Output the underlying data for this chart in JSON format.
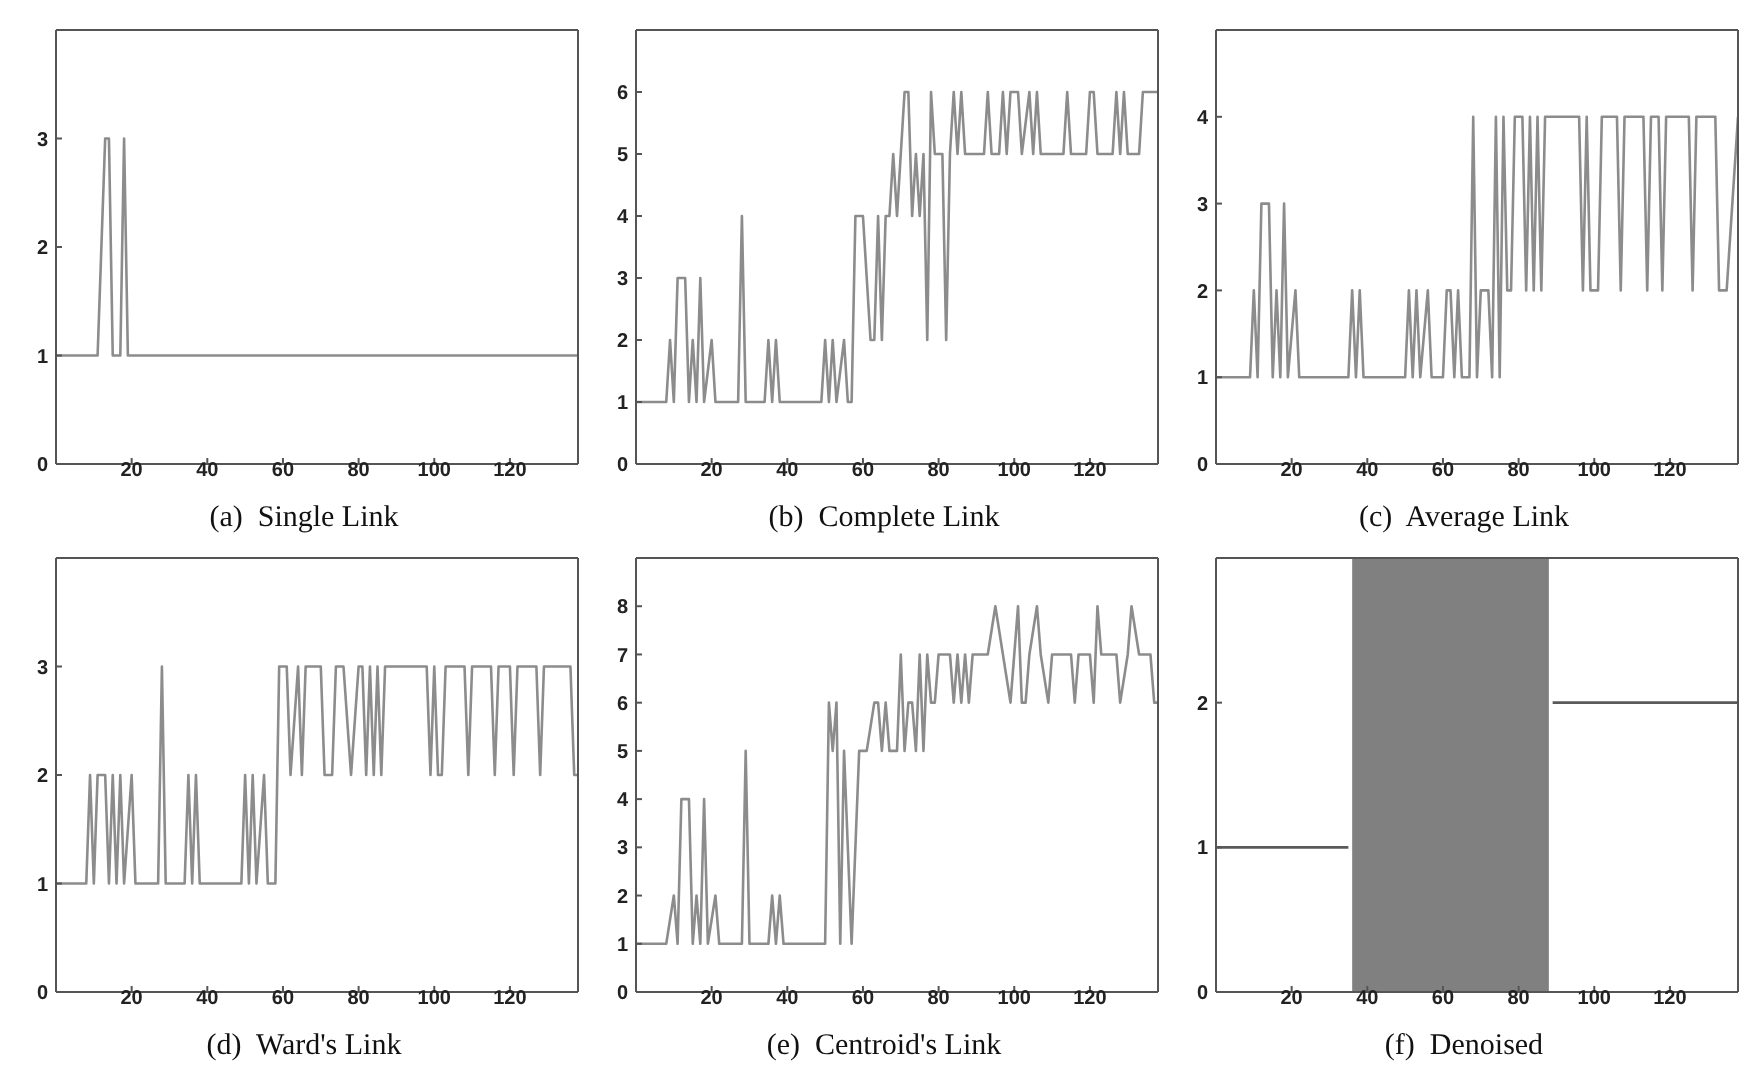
{
  "chart_data": [
    {
      "type": "line",
      "title": "(a)  Single Link",
      "xlim": [
        0,
        138
      ],
      "xticks": [
        20,
        40,
        60,
        80,
        100,
        120
      ],
      "ylim": [
        0,
        4
      ],
      "yticks": [
        0,
        1,
        2,
        3
      ],
      "grid": false,
      "series": [
        {
          "color": "#8c8c8c",
          "x": [
            0,
            11,
            13,
            14,
            15,
            17,
            18,
            19,
            138
          ],
          "values": [
            1,
            1,
            3,
            3,
            1,
            1,
            3,
            1,
            1
          ]
        }
      ]
    },
    {
      "type": "line",
      "title": "(b)  Complete Link",
      "xlim": [
        0,
        138
      ],
      "xticks": [
        20,
        40,
        60,
        80,
        100,
        120
      ],
      "ylim": [
        0,
        7
      ],
      "yticks": [
        0,
        1,
        2,
        3,
        4,
        5,
        6
      ],
      "grid": false,
      "series": [
        {
          "color": "#8c8c8c",
          "x": [
            0,
            8,
            9,
            10,
            11,
            13,
            14,
            15,
            16,
            17,
            18,
            20,
            21,
            27,
            28,
            29,
            34,
            35,
            36,
            37,
            38,
            49,
            50,
            51,
            52,
            53,
            55,
            56,
            57,
            58,
            60,
            62,
            63,
            64,
            65,
            66,
            67,
            68,
            69,
            71,
            72,
            73,
            74,
            75,
            76,
            77,
            78,
            79,
            81,
            82,
            83,
            84,
            85,
            86,
            87,
            92,
            93,
            94,
            96,
            97,
            98,
            99,
            101,
            102,
            104,
            105,
            106,
            107,
            113,
            114,
            115,
            119,
            120,
            121,
            122,
            126,
            127,
            128,
            129,
            130,
            133,
            134,
            138
          ],
          "values": [
            1,
            1,
            2,
            1,
            3,
            3,
            1,
            2,
            1,
            3,
            1,
            2,
            1,
            1,
            4,
            1,
            1,
            2,
            1,
            2,
            1,
            1,
            2,
            1,
            2,
            1,
            2,
            1,
            1,
            4,
            4,
            2,
            2,
            4,
            2,
            4,
            4,
            5,
            4,
            6,
            6,
            4,
            5,
            4,
            5,
            2,
            6,
            5,
            5,
            2,
            5,
            6,
            5,
            6,
            5,
            5,
            6,
            5,
            5,
            6,
            5,
            6,
            6,
            5,
            6,
            5,
            6,
            5,
            5,
            6,
            5,
            5,
            6,
            6,
            5,
            5,
            6,
            5,
            6,
            5,
            5,
            6,
            6
          ]
        }
      ]
    },
    {
      "type": "line",
      "title": "(c)  Average Link",
      "xlim": [
        0,
        138
      ],
      "xticks": [
        20,
        40,
        60,
        80,
        100,
        120
      ],
      "ylim": [
        0,
        5
      ],
      "yticks": [
        0,
        1,
        2,
        3,
        4
      ],
      "grid": false,
      "series": [
        {
          "color": "#8c8c8c",
          "x": [
            0,
            9,
            10,
            11,
            12,
            14,
            15,
            16,
            17,
            18,
            19,
            21,
            22,
            35,
            36,
            37,
            38,
            39,
            50,
            51,
            52,
            53,
            54,
            56,
            57,
            60,
            61,
            62,
            63,
            64,
            65,
            67,
            68,
            69,
            70,
            72,
            73,
            74,
            75,
            76,
            77,
            78,
            79,
            81,
            82,
            83,
            84,
            85,
            86,
            87,
            96,
            97,
            98,
            99,
            101,
            102,
            106,
            107,
            108,
            113,
            114,
            115,
            117,
            118,
            119,
            125,
            126,
            127,
            132,
            133,
            135,
            138
          ],
          "values": [
            1,
            1,
            2,
            1,
            3,
            3,
            1,
            2,
            1,
            3,
            1,
            2,
            1,
            1,
            2,
            1,
            2,
            1,
            1,
            2,
            1,
            2,
            1,
            2,
            1,
            1,
            2,
            2,
            1,
            2,
            1,
            1,
            4,
            1,
            2,
            2,
            1,
            4,
            1,
            4,
            2,
            2,
            4,
            4,
            2,
            4,
            2,
            4,
            2,
            4,
            4,
            2,
            4,
            2,
            2,
            4,
            4,
            2,
            4,
            4,
            2,
            4,
            4,
            2,
            4,
            4,
            2,
            4,
            4,
            2,
            2,
            4
          ]
        }
      ]
    },
    {
      "type": "line",
      "title": "(d)  Ward's Link",
      "xlim": [
        0,
        138
      ],
      "xticks": [
        20,
        40,
        60,
        80,
        100,
        120
      ],
      "ylim": [
        0,
        4
      ],
      "yticks": [
        0,
        1,
        2,
        3
      ],
      "grid": false,
      "series": [
        {
          "color": "#8c8c8c",
          "x": [
            0,
            8,
            9,
            10,
            11,
            13,
            14,
            15,
            16,
            17,
            18,
            20,
            21,
            27,
            28,
            29,
            34,
            35,
            36,
            37,
            38,
            49,
            50,
            51,
            52,
            53,
            55,
            56,
            58,
            59,
            61,
            62,
            64,
            65,
            66,
            70,
            71,
            73,
            74,
            76,
            78,
            80,
            81,
            82,
            83,
            84,
            85,
            86,
            87,
            98,
            99,
            100,
            101,
            102,
            103,
            108,
            109,
            110,
            115,
            116,
            117,
            120,
            121,
            122,
            127,
            128,
            129,
            136,
            137,
            138
          ],
          "values": [
            1,
            1,
            2,
            1,
            2,
            2,
            1,
            2,
            1,
            2,
            1,
            2,
            1,
            1,
            3,
            1,
            1,
            2,
            1,
            2,
            1,
            1,
            2,
            1,
            2,
            1,
            2,
            1,
            1,
            3,
            3,
            2,
            3,
            2,
            3,
            3,
            2,
            2,
            3,
            3,
            2,
            3,
            3,
            2,
            3,
            2,
            3,
            2,
            3,
            3,
            2,
            3,
            2,
            2,
            3,
            3,
            2,
            3,
            3,
            2,
            3,
            3,
            2,
            3,
            3,
            2,
            3,
            3,
            2,
            2
          ]
        }
      ]
    },
    {
      "type": "line",
      "title": "(e)  Centroid's Link",
      "xlim": [
        0,
        138
      ],
      "xticks": [
        20,
        40,
        60,
        80,
        100,
        120
      ],
      "ylim": [
        0,
        9
      ],
      "yticks": [
        0,
        1,
        2,
        3,
        4,
        5,
        6,
        7,
        8
      ],
      "grid": false,
      "series": [
        {
          "color": "#8c8c8c",
          "x": [
            0,
            8,
            10,
            11,
            12,
            14,
            15,
            16,
            17,
            18,
            19,
            21,
            22,
            28,
            29,
            30,
            35,
            36,
            37,
            38,
            39,
            50,
            51,
            52,
            53,
            54,
            55,
            57,
            59,
            61,
            63,
            64,
            65,
            66,
            67,
            69,
            70,
            71,
            72,
            73,
            74,
            75,
            76,
            77,
            78,
            79,
            80,
            83,
            84,
            85,
            86,
            87,
            88,
            89,
            93,
            95,
            97,
            99,
            101,
            102,
            103,
            104,
            106,
            107,
            109,
            110,
            115,
            116,
            117,
            120,
            121,
            122,
            123,
            127,
            128,
            130,
            131,
            133,
            136,
            137,
            138
          ],
          "values": [
            1,
            1,
            2,
            1,
            4,
            4,
            1,
            2,
            1,
            4,
            1,
            2,
            1,
            1,
            5,
            1,
            1,
            2,
            1,
            2,
            1,
            1,
            6,
            5,
            6,
            1,
            5,
            1,
            5,
            5,
            6,
            6,
            5,
            6,
            5,
            5,
            7,
            5,
            6,
            6,
            5,
            7,
            5,
            7,
            6,
            6,
            7,
            7,
            6,
            7,
            6,
            7,
            6,
            7,
            7,
            8,
            7,
            6,
            8,
            6,
            6,
            7,
            8,
            7,
            6,
            7,
            7,
            6,
            7,
            7,
            6,
            8,
            7,
            7,
            6,
            7,
            8,
            7,
            7,
            6,
            6
          ]
        }
      ]
    },
    {
      "type": "line",
      "title": "(f)  Denoised",
      "xlim": [
        0,
        138
      ],
      "xticks": [
        20,
        40,
        60,
        80,
        100,
        120
      ],
      "ylim": [
        0,
        3
      ],
      "yticks": [
        0,
        1,
        2
      ],
      "grid": false,
      "bands": [
        {
          "axis": "x",
          "from": 36,
          "to": 88,
          "color": "#808080"
        }
      ],
      "series": [
        {
          "color": "#5a5a5a",
          "x": [
            0,
            35
          ],
          "values": [
            1,
            1
          ]
        },
        {
          "color": "#5a5a5a",
          "x": [
            89,
            138
          ],
          "values": [
            2,
            2
          ]
        }
      ]
    }
  ]
}
